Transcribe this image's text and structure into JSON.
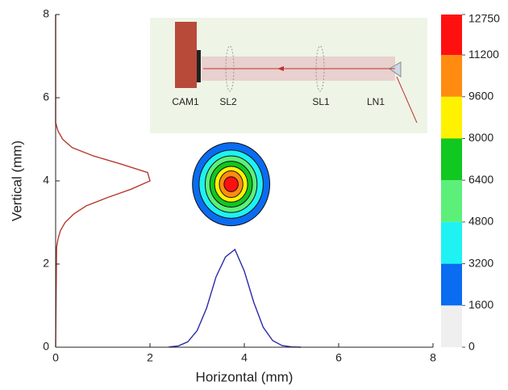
{
  "chart_data": {
    "type": "contour",
    "x_label": "Horizontal (mm)",
    "y_label": "Vertical (mm)",
    "xlim": [
      0,
      8
    ],
    "xticks": [
      0,
      2,
      4,
      6,
      8
    ],
    "ylim": [
      0,
      8
    ],
    "yticks": [
      0,
      2,
      4,
      6,
      8
    ],
    "center": [
      3.72,
      3.92
    ],
    "contours": [
      {
        "level": 1600,
        "rx": 0.82,
        "ry": 1.0
      },
      {
        "level": 3200,
        "rx": 0.68,
        "ry": 0.82
      },
      {
        "level": 4800,
        "rx": 0.55,
        "ry": 0.68
      },
      {
        "level": 6400,
        "rx": 0.45,
        "ry": 0.55
      },
      {
        "level": 8000,
        "rx": 0.35,
        "ry": 0.43
      },
      {
        "level": 9600,
        "rx": 0.25,
        "ry": 0.32
      },
      {
        "level": 11200,
        "rx": 0.15,
        "ry": 0.18
      }
    ],
    "colorbar": {
      "ticks": [
        0,
        1600,
        3200,
        4800,
        6400,
        8000,
        9600,
        11200,
        12750
      ],
      "colors": [
        "#efefef",
        "#0a6cf0",
        "#1ff2f2",
        "#5cf07a",
        "#10c820",
        "#fff200",
        "#ff8c10",
        "#ff1010"
      ]
    },
    "horizontal_profile": {
      "color": "#2a2aa8",
      "x": [
        2.4,
        2.6,
        2.8,
        3.0,
        3.2,
        3.4,
        3.6,
        3.8,
        4.0,
        4.2,
        4.4,
        4.6,
        4.8,
        5.0,
        5.2
      ],
      "values": [
        0.006,
        0.031,
        0.128,
        0.4,
        0.94,
        1.69,
        2.17,
        2.35,
        1.83,
        1.08,
        0.48,
        0.16,
        0.04,
        0.008,
        0
      ]
    },
    "vertical_profile": {
      "color": "#b83a2e",
      "y": [
        0,
        2.4,
        2.6,
        2.8,
        3.0,
        3.2,
        3.4,
        3.6,
        3.8,
        4.0,
        4.2,
        4.4,
        4.6,
        4.8,
        5.0,
        5.2,
        5.4,
        8
      ],
      "values": [
        0,
        0.02,
        0.05,
        0.1,
        0.2,
        0.38,
        0.65,
        1.1,
        1.6,
        2.0,
        1.95,
        1.4,
        0.8,
        0.35,
        0.15,
        0.05,
        0,
        0
      ]
    },
    "inset_labels": [
      "CAM1",
      "SL2",
      "SL1",
      "LN1"
    ]
  }
}
